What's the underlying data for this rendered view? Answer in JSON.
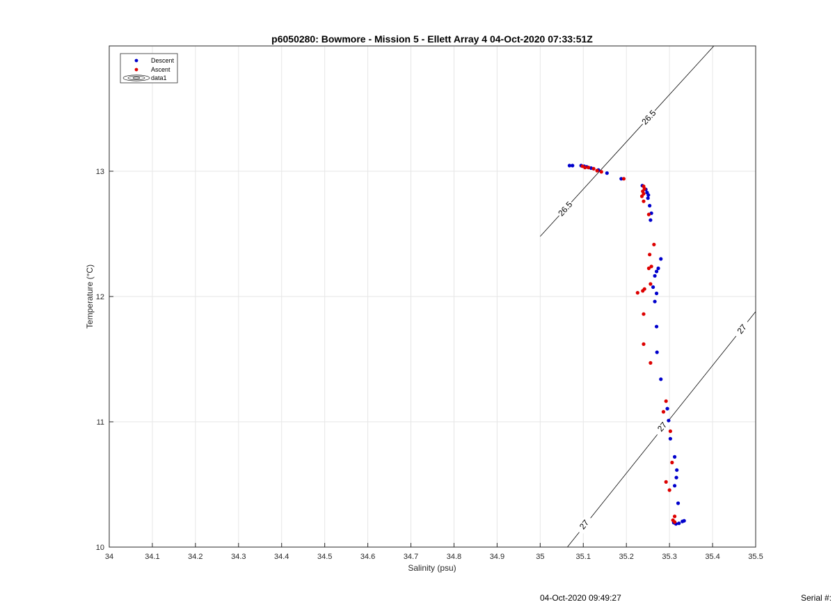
{
  "footer": {
    "timestamp": "04-Oct-2020 09:49:27",
    "serial_label": "Serial #:"
  },
  "colors": {
    "descent": "#0000cc",
    "ascent": "#dd0000",
    "grid": "#e6e6e6",
    "axis": "#262626",
    "contour": "#000000"
  },
  "chart_data": {
    "type": "scatter",
    "title": "p6050280: Bowmore - Mission 5 - Ellett Array 4 04-Oct-2020 07:33:51Z",
    "xlabel": "Salinity (psu)",
    "ylabel": "Temperature (°C)",
    "xlim": [
      34,
      35.5
    ],
    "ylim": [
      10,
      14
    ],
    "x_ticks": [
      "34",
      "34.1",
      "34.2",
      "34.3",
      "34.4",
      "34.5",
      "34.6",
      "34.7",
      "34.8",
      "34.9",
      "35",
      "35.1",
      "35.2",
      "35.3",
      "35.4",
      "35.5"
    ],
    "y_ticks": [
      "10",
      "11",
      "12",
      "13"
    ],
    "grid": true,
    "legend_position": "top-left",
    "legend": [
      "Descent",
      "Ascent",
      "data1"
    ],
    "series": [
      {
        "name": "Descent",
        "color": "#0000cc",
        "points": [
          [
            35.068,
            13.045
          ],
          [
            35.075,
            13.045
          ],
          [
            35.095,
            13.045
          ],
          [
            35.102,
            13.04
          ],
          [
            35.108,
            13.035
          ],
          [
            35.118,
            13.025
          ],
          [
            35.135,
            13.01
          ],
          [
            35.155,
            12.985
          ],
          [
            35.188,
            12.94
          ],
          [
            35.237,
            12.885
          ],
          [
            35.245,
            12.855
          ],
          [
            35.248,
            12.83
          ],
          [
            35.251,
            12.81
          ],
          [
            35.25,
            12.785
          ],
          [
            35.254,
            12.725
          ],
          [
            35.258,
            12.665
          ],
          [
            35.256,
            12.61
          ],
          [
            35.28,
            12.3
          ],
          [
            35.274,
            12.225
          ],
          [
            35.27,
            12.2
          ],
          [
            35.266,
            12.165
          ],
          [
            35.262,
            12.075
          ],
          [
            35.27,
            12.025
          ],
          [
            35.266,
            11.96
          ],
          [
            35.27,
            11.76
          ],
          [
            35.271,
            11.555
          ],
          [
            35.28,
            11.34
          ],
          [
            35.295,
            11.105
          ],
          [
            35.298,
            11.01
          ],
          [
            35.302,
            10.865
          ],
          [
            35.312,
            10.72
          ],
          [
            35.317,
            10.615
          ],
          [
            35.316,
            10.555
          ],
          [
            35.312,
            10.49
          ],
          [
            35.32,
            10.35
          ],
          [
            35.31,
            10.195
          ],
          [
            35.315,
            10.185
          ],
          [
            35.322,
            10.19
          ],
          [
            35.33,
            10.205
          ],
          [
            35.334,
            10.21
          ]
        ]
      },
      {
        "name": "Ascent",
        "color": "#dd0000",
        "points": [
          [
            35.098,
            13.04
          ],
          [
            35.104,
            13.03
          ],
          [
            35.112,
            13.03
          ],
          [
            35.124,
            13.02
          ],
          [
            35.132,
            13.005
          ],
          [
            35.142,
            12.995
          ],
          [
            35.194,
            12.94
          ],
          [
            35.24,
            12.88
          ],
          [
            35.242,
            12.86
          ],
          [
            35.238,
            12.84
          ],
          [
            35.24,
            12.82
          ],
          [
            35.236,
            12.8
          ],
          [
            35.24,
            12.76
          ],
          [
            35.252,
            12.655
          ],
          [
            35.264,
            12.415
          ],
          [
            35.254,
            12.335
          ],
          [
            35.258,
            12.24
          ],
          [
            35.252,
            12.225
          ],
          [
            35.256,
            12.1
          ],
          [
            35.242,
            12.06
          ],
          [
            35.238,
            12.045
          ],
          [
            35.226,
            12.03
          ],
          [
            35.24,
            11.86
          ],
          [
            35.24,
            11.62
          ],
          [
            35.256,
            11.47
          ],
          [
            35.292,
            11.165
          ],
          [
            35.286,
            11.08
          ],
          [
            35.302,
            10.925
          ],
          [
            35.306,
            10.675
          ],
          [
            35.292,
            10.52
          ],
          [
            35.3,
            10.455
          ],
          [
            35.312,
            10.245
          ],
          [
            35.308,
            10.215
          ],
          [
            35.312,
            10.2
          ]
        ]
      }
    ],
    "contours": [
      {
        "label": "26.5",
        "color": "#000000",
        "from": [
          35.0,
          12.48
        ],
        "to": [
          35.403,
          14.0
        ],
        "label_at": [
          [
            35.058,
            12.7
          ],
          [
            35.252,
            13.43
          ]
        ]
      },
      {
        "label": "27",
        "color": "#000000",
        "from": [
          35.063,
          10.0
        ],
        "to": [
          35.5,
          11.88
        ],
        "label_at": [
          [
            35.102,
            10.18
          ],
          [
            35.283,
            10.96
          ],
          [
            35.468,
            11.74
          ]
        ]
      }
    ]
  }
}
